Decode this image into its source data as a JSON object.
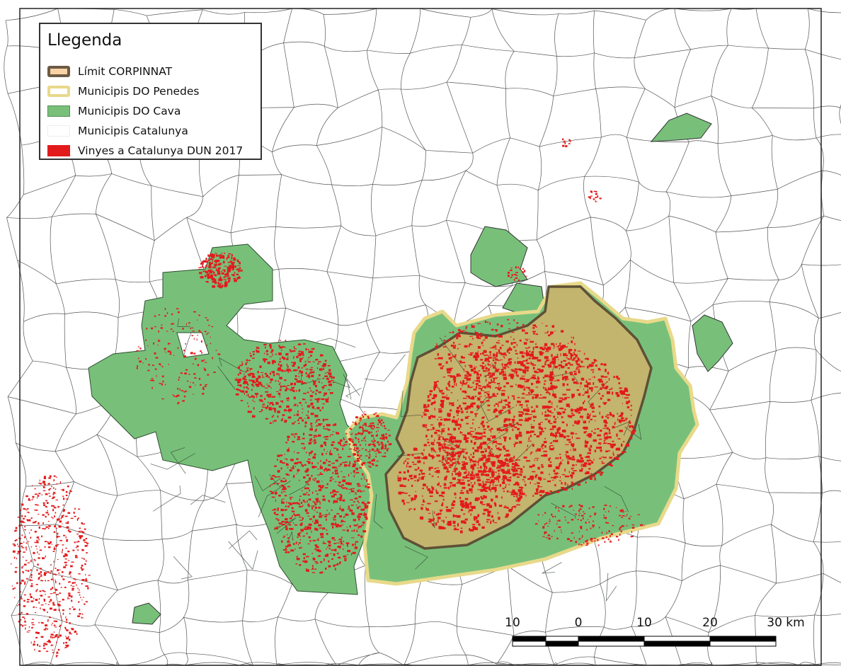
{
  "legend": {
    "title": "Llegenda",
    "items": [
      {
        "label": "Límit CORPINNAT",
        "fill": "#f9d3a6",
        "stroke": "#6b5a45"
      },
      {
        "label": "Municipis DO Penedes",
        "fill": "#ffffff",
        "stroke": "#e8d98a"
      },
      {
        "label": "Municipis DO Cava",
        "fill": "#78c07a",
        "stroke": "#5a8f5c"
      },
      {
        "label": "Municipis Catalunya",
        "fill": "#ffffff",
        "stroke": "#cccccc"
      },
      {
        "label": "Vinyes a Catalunya DUN 2017",
        "fill": "#e31a1c",
        "stroke": "#e31a1c"
      }
    ]
  },
  "scale_bar": {
    "labels": [
      "10",
      "0",
      "10",
      "20",
      "30 km"
    ],
    "unit": "km"
  },
  "colors": {
    "cava": "#78c07a",
    "penedes_border": "#e8d98a",
    "corpinnat_fill": "#c3b46e",
    "corpinnat_border": "#5e5036",
    "vineyards": "#e31a1c",
    "municipality_lines": "#444444"
  }
}
